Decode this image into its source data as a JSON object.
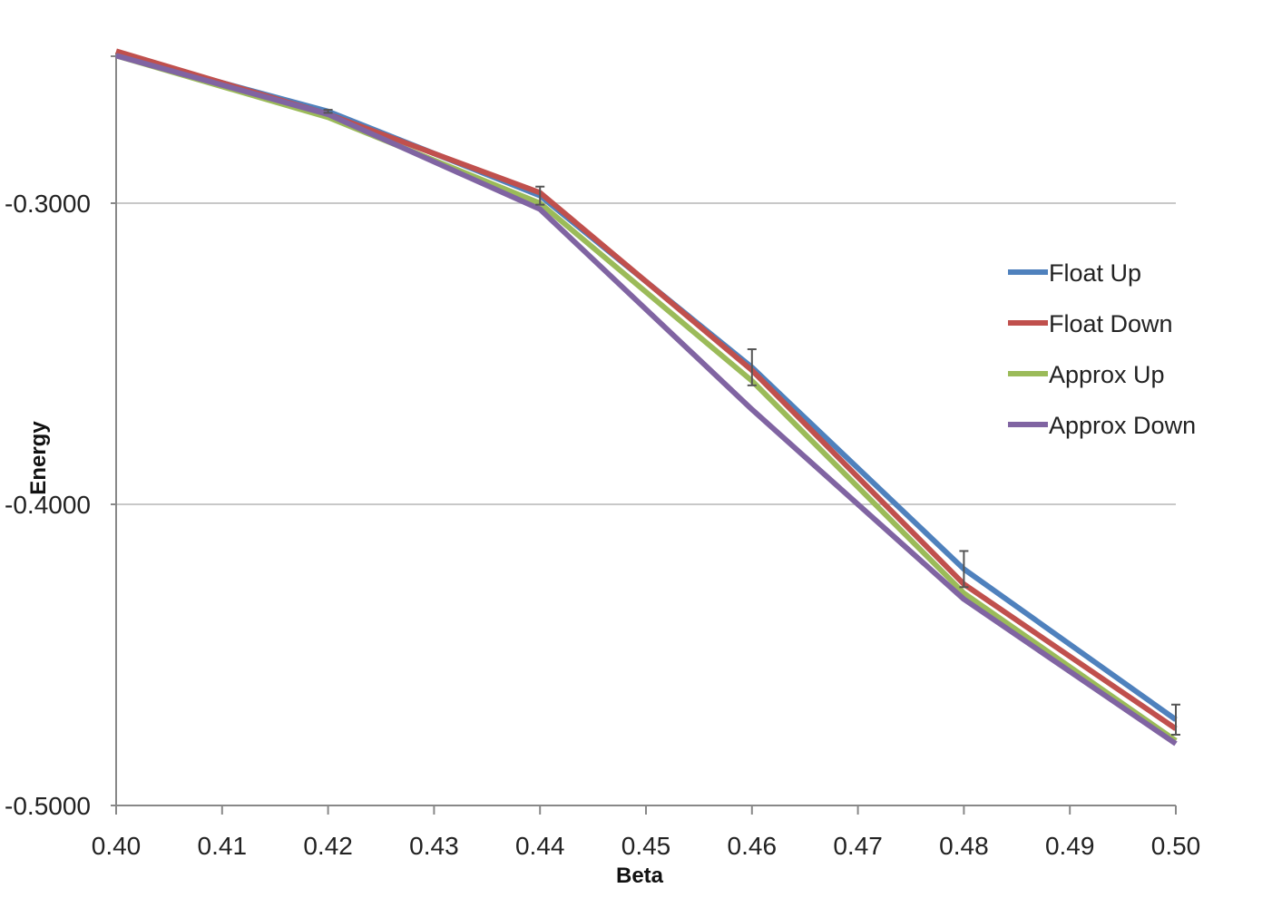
{
  "chart_data": {
    "type": "line",
    "title": "",
    "xlabel": "Beta",
    "ylabel": "Energy",
    "xlim": [
      0.4,
      0.5
    ],
    "ylim": [
      -0.5,
      -0.25
    ],
    "x_ticks": [
      "0.40",
      "0.41",
      "0.42",
      "0.43",
      "0.44",
      "0.45",
      "0.46",
      "0.47",
      "0.48",
      "0.49",
      "0.50"
    ],
    "y_ticks": [
      "-0.3000",
      "-0.4000",
      "-0.5000"
    ],
    "grid": "horizontal",
    "legend_position": "right",
    "x": [
      0.4,
      0.42,
      0.44,
      0.46,
      0.48,
      0.5
    ],
    "series": [
      {
        "name": "Float Up",
        "color": "#4f81bd",
        "values": [
          -0.2505,
          -0.2695,
          -0.2975,
          -0.3545,
          -0.4215,
          -0.4715
        ],
        "error_low": [
          0,
          0.0005,
          0.003,
          0.006,
          0.006,
          0.005
        ],
        "error_high": [
          0,
          0.0005,
          0.003,
          0.006,
          0.006,
          0.005
        ]
      },
      {
        "name": "Float Down",
        "color": "#c0504d",
        "values": [
          -0.2495,
          -0.2705,
          -0.2965,
          -0.3555,
          -0.4265,
          -0.4745
        ],
        "error_low": [
          0,
          0,
          0,
          0,
          0,
          0
        ],
        "error_high": [
          0,
          0,
          0,
          0,
          0,
          0
        ]
      },
      {
        "name": "Approx Up",
        "color": "#9bbb59",
        "values": [
          -0.251,
          -0.2715,
          -0.3,
          -0.359,
          -0.4295,
          -0.4785
        ],
        "error_low": [
          0,
          0,
          0,
          0,
          0,
          0
        ],
        "error_high": [
          0,
          0,
          0,
          0,
          0,
          0
        ]
      },
      {
        "name": "Approx Down",
        "color": "#8064a2",
        "values": [
          -0.251,
          -0.2705,
          -0.302,
          -0.3685,
          -0.4315,
          -0.4795
        ],
        "error_low": [
          0,
          0,
          0,
          0,
          0,
          0
        ],
        "error_high": [
          0,
          0,
          0,
          0,
          0,
          0
        ]
      }
    ],
    "gridline_color": "#c8c8c8",
    "axis_color": "#888888",
    "error_bar_color": "#555555"
  }
}
